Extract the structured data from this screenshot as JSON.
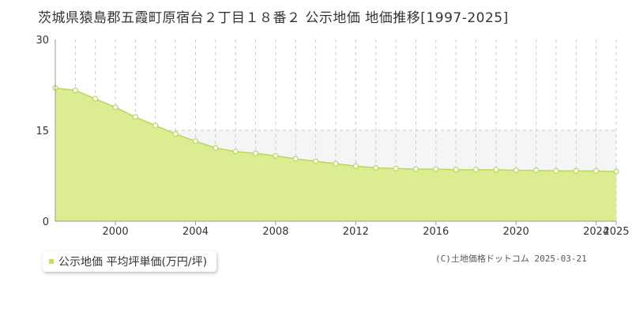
{
  "title": "茨城県猿島郡五霞町原宿台２丁目１８番２ 公示地価 地価推移[1997-2025]",
  "legend": {
    "label": "公示地価 平均坪単価(万円/坪)"
  },
  "copyright": "(C)土地価格ドットコム 2025-03-21",
  "colors": {
    "fill": "#dbec91",
    "line": "#b8d957",
    "point_fill": "#ffffff",
    "band": "#f5f5f5",
    "grid_dashed": "#cccccc",
    "axis": "#999999",
    "legend_marker": "#c4e35b"
  },
  "chart_data": {
    "type": "area",
    "title": "茨城県猿島郡五霞町原宿台２丁目１８番２ 公示地価 地価推移[1997-2025]",
    "xlabel": "",
    "ylabel": "",
    "xlim": [
      1997,
      2025
    ],
    "ylim": [
      0,
      30
    ],
    "y_ticks": [
      "0",
      "15",
      "30"
    ],
    "x_ticks": [
      "2000",
      "2004",
      "2008",
      "2012",
      "2016",
      "2020",
      "2024",
      "2025"
    ],
    "grid": true,
    "legend_position": "bottom-left",
    "series": [
      {
        "name": "公示地価 平均坪単価(万円/坪)",
        "x": [
          1997,
          1998,
          1999,
          2000,
          2001,
          2002,
          2003,
          2004,
          2005,
          2006,
          2007,
          2008,
          2009,
          2010,
          2011,
          2012,
          2013,
          2014,
          2015,
          2016,
          2017,
          2018,
          2019,
          2020,
          2021,
          2022,
          2023,
          2024,
          2025
        ],
        "values": [
          22.0,
          21.6,
          20.2,
          18.8,
          17.2,
          15.8,
          14.4,
          13.2,
          12.1,
          11.5,
          11.2,
          10.8,
          10.3,
          9.9,
          9.5,
          9.1,
          8.8,
          8.7,
          8.6,
          8.6,
          8.5,
          8.5,
          8.5,
          8.4,
          8.4,
          8.3,
          8.3,
          8.3,
          8.2
        ]
      }
    ]
  }
}
